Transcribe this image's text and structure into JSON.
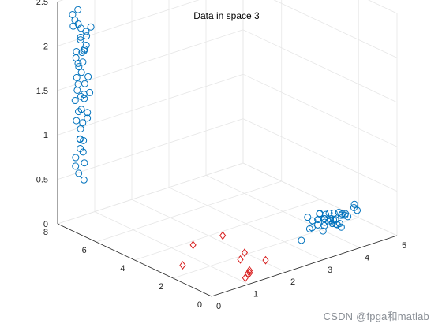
{
  "watermark": "CSDN @fpga和matlab",
  "chart_data": {
    "type": "scatter",
    "title": "Data in space 3",
    "xlabel": "",
    "ylabel": "",
    "zlabel": "",
    "projection": "3d",
    "grid": true,
    "xlim": [
      0,
      5
    ],
    "ylim": [
      0,
      8
    ],
    "zlim": [
      0,
      2.5
    ],
    "xticks": [
      "0",
      "1",
      "2",
      "3",
      "4",
      "5"
    ],
    "yticks": [
      "0",
      "2",
      "4",
      "6",
      "8"
    ],
    "zticks": [
      "0",
      "0.5",
      "1",
      "1.5",
      "2",
      "2.5"
    ],
    "colors": {
      "series1": "#0072BD",
      "series2": "#D95319",
      "series3": "#D81B1B"
    },
    "series": [
      {
        "marker": "circle",
        "color": "#0072BD",
        "points": [
          [
            0.1,
            6.98,
            2.29
          ],
          [
            0.08,
            7.1,
            2.49
          ],
          [
            0.04,
            7.18,
            2.37
          ],
          [
            0.12,
            7.04,
            2.15
          ],
          [
            0.06,
            6.92,
            2.2
          ],
          [
            0.14,
            7.2,
            2.31
          ],
          [
            0.02,
            7.06,
            2.03
          ],
          [
            0.18,
            6.86,
            2.1
          ],
          [
            0.1,
            7.24,
            1.93
          ],
          [
            0.16,
            7.0,
            1.9
          ],
          [
            0.06,
            6.88,
            1.81
          ],
          [
            0.2,
            7.12,
            1.99
          ],
          [
            0.04,
            7.3,
            2.42
          ],
          [
            0.22,
            6.95,
            2.24
          ],
          [
            0.12,
            6.82,
            1.68
          ],
          [
            0.08,
            7.16,
            1.72
          ],
          [
            0.18,
            7.28,
            1.62
          ],
          [
            0.14,
            6.9,
            1.55
          ],
          [
            0.02,
            7.02,
            1.6
          ],
          [
            0.24,
            7.08,
            1.47
          ],
          [
            0.1,
            6.96,
            1.38
          ],
          [
            0.16,
            7.22,
            1.32
          ],
          [
            0.06,
            7.14,
            1.24
          ],
          [
            0.2,
            6.84,
            1.28
          ],
          [
            0.12,
            7.04,
            1.15
          ],
          [
            0.04,
            6.92,
            1.06
          ],
          [
            0.18,
            7.18,
            1.01
          ],
          [
            0.08,
            6.98,
            0.94
          ],
          [
            0.22,
            7.1,
            0.87
          ],
          [
            0.14,
            6.88,
            0.78
          ],
          [
            0.1,
            7.26,
            0.71
          ],
          [
            0.06,
            7.02,
            0.66
          ],
          [
            0.16,
            6.94,
            0.58
          ],
          [
            0.24,
            7.16,
            1.19
          ],
          [
            0.12,
            7.32,
            1.44
          ],
          [
            0.2,
            6.8,
            1.75
          ],
          [
            0.08,
            6.78,
            2.06
          ],
          [
            0.0,
            6.9,
            1.88
          ],
          [
            0.26,
            7.0,
            2.18
          ],
          [
            0.14,
            7.06,
            1.51
          ],
          [
            0.32,
            6.95,
            1.54
          ],
          [
            0.18,
            6.62,
            2.33
          ],
          [
            0.05,
            6.7,
            2.09
          ],
          [
            0.22,
            7.36,
            1.84
          ],
          [
            0.11,
            7.4,
            2.27
          ],
          [
            0.28,
            7.2,
            0.98
          ],
          [
            0.03,
            7.12,
            0.83
          ],
          [
            0.15,
            6.74,
            1.36
          ]
        ]
      },
      {
        "marker": "circle",
        "color": "#0072BD",
        "points": [
          [
            4.21,
            1.94,
            0.1
          ],
          [
            4.12,
            2.08,
            0.02
          ],
          [
            4.3,
            1.82,
            0.04
          ],
          [
            4.05,
            1.96,
            0.12
          ],
          [
            4.38,
            2.0,
            0.06
          ],
          [
            4.18,
            2.18,
            0.08
          ],
          [
            3.98,
            1.88,
            0.0
          ],
          [
            4.26,
            2.1,
            0.14
          ],
          [
            4.44,
            1.9,
            0.02
          ],
          [
            4.08,
            1.78,
            0.1
          ],
          [
            3.92,
            2.04,
            0.06
          ],
          [
            4.34,
            2.2,
            0.04
          ],
          [
            4.5,
            2.06,
            0.12
          ],
          [
            4.14,
            1.7,
            0.08
          ],
          [
            3.86,
            1.92,
            0.14
          ],
          [
            4.4,
            1.74,
            0.0
          ],
          [
            4.02,
            2.14,
            0.16
          ],
          [
            4.56,
            1.86,
            0.1
          ],
          [
            4.24,
            1.64,
            0.06
          ],
          [
            3.8,
            2.1,
            0.04
          ],
          [
            4.62,
            2.12,
            0.08
          ],
          [
            3.94,
            1.72,
            0.12
          ],
          [
            4.46,
            2.26,
            0.02
          ],
          [
            4.28,
            2.32,
            0.1
          ],
          [
            4.68,
            1.94,
            0.06
          ],
          [
            3.74,
            1.96,
            0.14
          ],
          [
            4.8,
            2.3,
            0.04
          ],
          [
            3.66,
            2.06,
            0.18
          ],
          [
            4.86,
            1.8,
            0.12
          ],
          [
            3.6,
            1.84,
            0.08
          ],
          [
            4.9,
            2.02,
            0.16
          ],
          [
            3.2,
            1.5,
            0.04
          ],
          [
            4.74,
            2.4,
            0.02
          ],
          [
            4.58,
            2.46,
            0.06
          ],
          [
            4.16,
            2.4,
            0.12
          ],
          [
            4.96,
            2.16,
            0.1
          ]
        ]
      },
      {
        "marker": "diamond",
        "color": "#D81B1B",
        "points": [
          [
            1.38,
            3.62,
            0.02
          ],
          [
            2.2,
            3.66,
            0.01
          ],
          [
            1.48,
            0.88,
            0.0
          ],
          [
            1.34,
            0.6,
            0.02
          ],
          [
            1.16,
            0.48,
            0.0
          ],
          [
            1.94,
            2.02,
            0.02
          ],
          [
            1.7,
            1.78,
            0.0
          ],
          [
            0.56,
            2.58,
            0.01
          ],
          [
            1.26,
            0.54,
            0.03
          ],
          [
            2.08,
            1.2,
            0.0
          ]
        ]
      }
    ]
  }
}
